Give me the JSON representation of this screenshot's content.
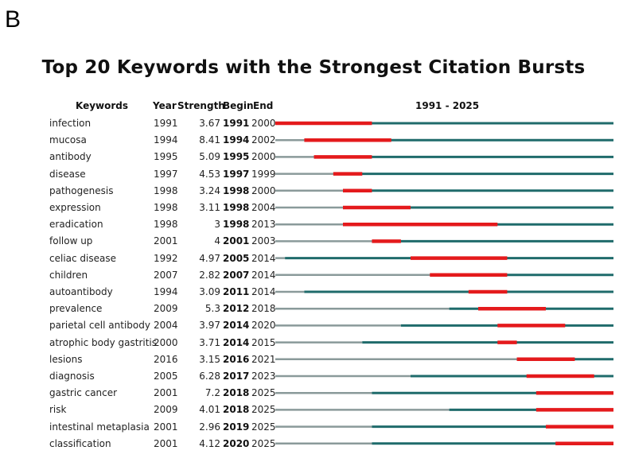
{
  "panel_label": "B",
  "chart_data": {
    "type": "burst-timeline",
    "title": "Top 20 Keywords with the Strongest Citation Bursts",
    "columns": [
      "Keywords",
      "Year",
      "Strength",
      "Begin",
      "End"
    ],
    "range_label": "1991 - 2025",
    "range": [
      1991,
      2025
    ],
    "colors": {
      "pre": "#8a9a9a",
      "active": "#1f6b6b",
      "burst": "#e41a1c"
    },
    "rows": [
      {
        "keyword": "infection",
        "year": "1991",
        "strength": "3.67",
        "begin": "1991",
        "end": "2000"
      },
      {
        "keyword": "mucosa",
        "year": "1994",
        "strength": "8.41",
        "begin": "1994",
        "end": "2002"
      },
      {
        "keyword": "antibody",
        "year": "1995",
        "strength": "5.09",
        "begin": "1995",
        "end": "2000"
      },
      {
        "keyword": "disease",
        "year": "1997",
        "strength": "4.53",
        "begin": "1997",
        "end": "1999"
      },
      {
        "keyword": "pathogenesis",
        "year": "1998",
        "strength": "3.24",
        "begin": "1998",
        "end": "2000"
      },
      {
        "keyword": "expression",
        "year": "1998",
        "strength": "3.11",
        "begin": "1998",
        "end": "2004"
      },
      {
        "keyword": "eradication",
        "year": "1998",
        "strength": "3",
        "begin": "1998",
        "end": "2013"
      },
      {
        "keyword": "follow up",
        "year": "2001",
        "strength": "4",
        "begin": "2001",
        "end": "2003"
      },
      {
        "keyword": "celiac disease",
        "year": "1992",
        "strength": "4.97",
        "begin": "2005",
        "end": "2014"
      },
      {
        "keyword": "children",
        "year": "2007",
        "strength": "2.82",
        "begin": "2007",
        "end": "2014"
      },
      {
        "keyword": "autoantibody",
        "year": "1994",
        "strength": "3.09",
        "begin": "2011",
        "end": "2014"
      },
      {
        "keyword": "prevalence",
        "year": "2009",
        "strength": "5.3",
        "begin": "2012",
        "end": "2018"
      },
      {
        "keyword": "parietal cell antibody",
        "year": "2004",
        "strength": "3.97",
        "begin": "2014",
        "end": "2020"
      },
      {
        "keyword": "atrophic body gastritis",
        "year": "2000",
        "strength": "3.71",
        "begin": "2014",
        "end": "2015"
      },
      {
        "keyword": "lesions",
        "year": "2016",
        "strength": "3.15",
        "begin": "2016",
        "end": "2021"
      },
      {
        "keyword": "diagnosis",
        "year": "2005",
        "strength": "6.28",
        "begin": "2017",
        "end": "2023"
      },
      {
        "keyword": "gastric cancer",
        "year": "2001",
        "strength": "7.2",
        "begin": "2018",
        "end": "2025"
      },
      {
        "keyword": "risk",
        "year": "2009",
        "strength": "4.01",
        "begin": "2018",
        "end": "2025"
      },
      {
        "keyword": "intestinal metaplasia",
        "year": "2001",
        "strength": "2.96",
        "begin": "2019",
        "end": "2025"
      },
      {
        "keyword": "classification",
        "year": "2001",
        "strength": "4.12",
        "begin": "2020",
        "end": "2025"
      }
    ]
  }
}
